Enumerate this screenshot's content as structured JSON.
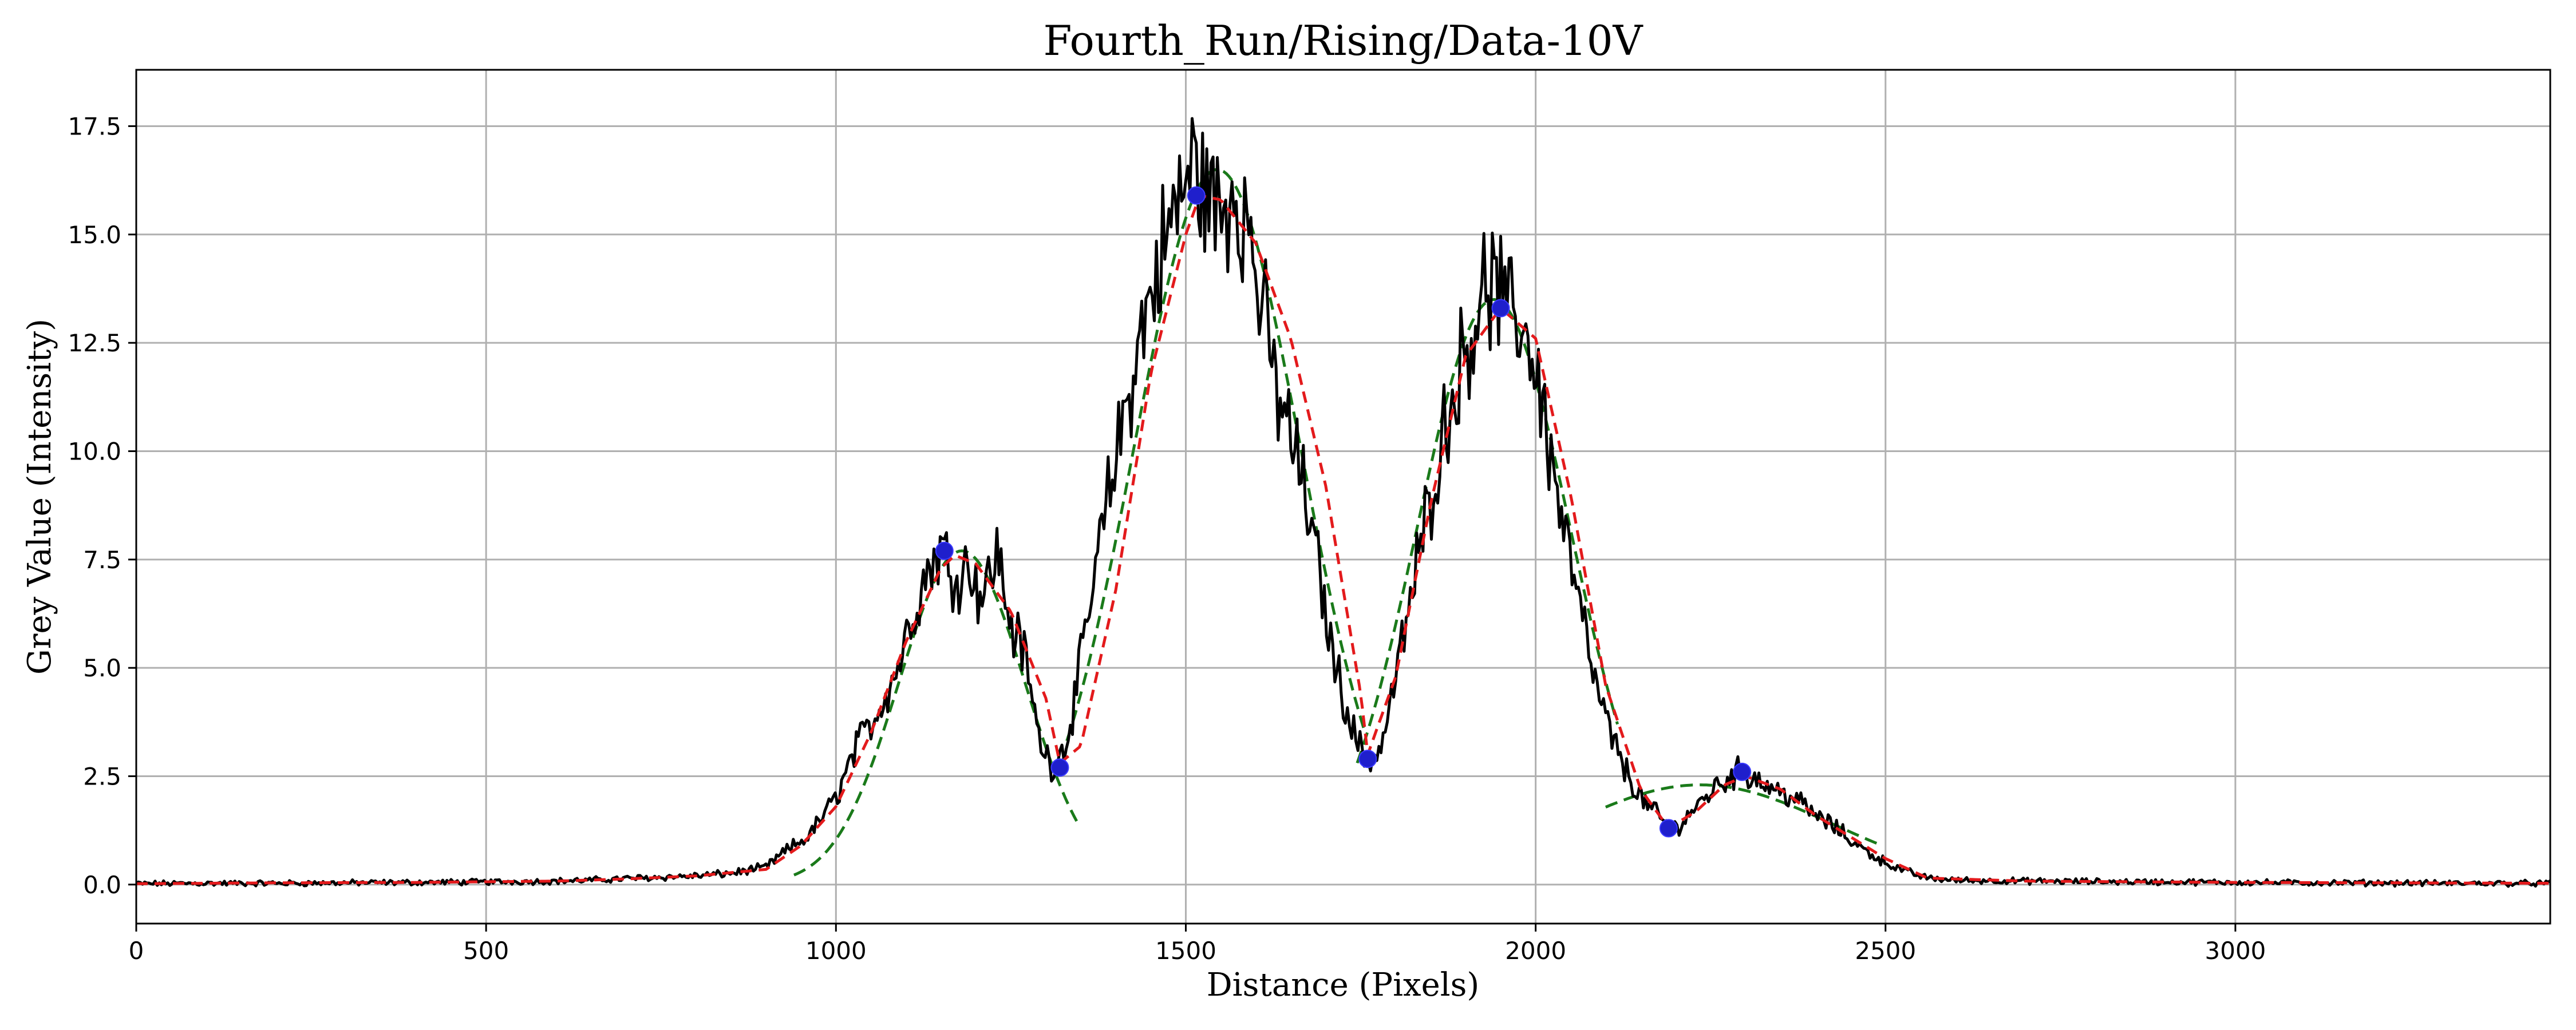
{
  "chart_data": {
    "type": "line",
    "title": "Fourth_Run/Rising/Data-10V",
    "xlabel": "Distance (Pixels)",
    "ylabel": "Grey Value (Intensity)",
    "xlim": [
      0,
      3450
    ],
    "ylim": [
      -0.9,
      18.8
    ],
    "xticks": [
      0,
      500,
      1000,
      1500,
      2000,
      2500,
      3000
    ],
    "yticks": [
      0.0,
      2.5,
      5.0,
      7.5,
      10.0,
      12.5,
      15.0,
      17.5
    ],
    "xtick_labels": [
      "0",
      "500",
      "1000",
      "1500",
      "2000",
      "2500",
      "3000"
    ],
    "ytick_labels": [
      "0.0",
      "2.5",
      "5.0",
      "7.5",
      "10.0",
      "12.5",
      "15.0",
      "17.5"
    ],
    "grid": true,
    "legend": "none",
    "series": [
      {
        "role": "raw-profile",
        "color": "#000000",
        "style": "solid",
        "x": [
          0,
          100,
          200,
          300,
          400,
          500,
          600,
          650,
          700,
          750,
          800,
          850,
          900,
          930,
          960,
          1000,
          1030,
          1060,
          1090,
          1110,
          1130,
          1150,
          1170,
          1190,
          1210,
          1230,
          1250,
          1270,
          1290,
          1310,
          1330,
          1350,
          1380,
          1410,
          1440,
          1470,
          1490,
          1510,
          1530,
          1550,
          1570,
          1590,
          1610,
          1630,
          1660,
          1690,
          1710,
          1740,
          1760,
          1780,
          1810,
          1840,
          1870,
          1900,
          1920,
          1940,
          1960,
          1980,
          2000,
          2030,
          2060,
          2090,
          2120,
          2150,
          2180,
          2200,
          2230,
          2260,
          2290,
          2310,
          2340,
          2370,
          2400,
          2430,
          2460,
          2490,
          2520,
          2560,
          2600,
          2700,
          2800,
          2900,
          3000,
          3100,
          3200,
          3300,
          3450
        ],
        "y": [
          0.02,
          0.03,
          0.03,
          0.04,
          0.05,
          0.06,
          0.08,
          0.1,
          0.14,
          0.17,
          0.2,
          0.26,
          0.4,
          0.8,
          1.1,
          2.0,
          3.2,
          4.0,
          5.1,
          6.3,
          7.2,
          7.8,
          7.1,
          7.4,
          6.6,
          7.7,
          6.0,
          5.3,
          3.4,
          2.7,
          3.3,
          5.1,
          8.1,
          10.7,
          13.0,
          14.8,
          15.8,
          16.6,
          16.0,
          15.4,
          16.2,
          15.1,
          13.2,
          11.4,
          9.8,
          7.3,
          5.3,
          3.5,
          2.8,
          3.2,
          5.6,
          8.2,
          10.6,
          12.4,
          13.5,
          13.9,
          13.1,
          13.0,
          12.0,
          9.1,
          6.6,
          4.3,
          2.9,
          2.0,
          1.5,
          1.3,
          1.8,
          2.3,
          2.6,
          2.5,
          2.2,
          2.0,
          1.6,
          1.3,
          0.9,
          0.6,
          0.35,
          0.15,
          0.1,
          0.08,
          0.07,
          0.06,
          0.05,
          0.04,
          0.04,
          0.03,
          0.03
        ],
        "noise_peak_labels": []
      },
      {
        "role": "smoothed",
        "color": "#e31a1c",
        "style": "dashed",
        "x": [
          0,
          200,
          400,
          600,
          700,
          800,
          900,
          950,
          1000,
          1050,
          1100,
          1150,
          1170,
          1200,
          1250,
          1300,
          1320,
          1350,
          1400,
          1450,
          1500,
          1520,
          1550,
          1600,
          1650,
          1700,
          1750,
          1760,
          1800,
          1850,
          1900,
          1950,
          2000,
          2050,
          2100,
          2150,
          2190,
          2230,
          2270,
          2300,
          2350,
          2400,
          2450,
          2500,
          2560,
          2700,
          3000,
          3450
        ],
        "y": [
          0.02,
          0.04,
          0.05,
          0.08,
          0.13,
          0.2,
          0.35,
          0.9,
          1.8,
          3.5,
          5.6,
          7.3,
          7.6,
          7.4,
          6.3,
          4.3,
          2.8,
          3.2,
          6.8,
          11.8,
          15.0,
          15.9,
          15.8,
          14.8,
          12.6,
          9.2,
          4.4,
          3.0,
          4.8,
          8.8,
          12.2,
          13.3,
          12.6,
          9.0,
          4.6,
          2.2,
          1.3,
          1.7,
          2.3,
          2.5,
          2.2,
          1.6,
          1.1,
          0.6,
          0.15,
          0.08,
          0.05,
          0.03
        ]
      },
      {
        "role": "peak-fit",
        "color": "#1a7a1a",
        "style": "dashed",
        "segments": [
          {
            "center": 1180,
            "amplitude": 7.7,
            "sigma": 90,
            "xmin": 940,
            "xmax": 1345
          },
          {
            "center": 1545,
            "amplitude": 16.5,
            "sigma": 120,
            "xmin": 1330,
            "xmax": 1760
          },
          {
            "center": 1940,
            "amplitude": 13.5,
            "sigma": 110,
            "xmin": 1745,
            "xmax": 2120
          },
          {
            "center": 2235,
            "amplitude": 2.3,
            "sigma": 190,
            "xmin": 2100,
            "xmax": 2490
          }
        ]
      }
    ],
    "markers": {
      "color": "#1f1fcc",
      "points": [
        {
          "x": 1155,
          "y": 7.7
        },
        {
          "x": 1320,
          "y": 2.7
        },
        {
          "x": 1515,
          "y": 15.9
        },
        {
          "x": 1760,
          "y": 2.9
        },
        {
          "x": 1950,
          "y": 13.3
        },
        {
          "x": 2190,
          "y": 1.3
        },
        {
          "x": 2295,
          "y": 2.6
        }
      ]
    }
  }
}
